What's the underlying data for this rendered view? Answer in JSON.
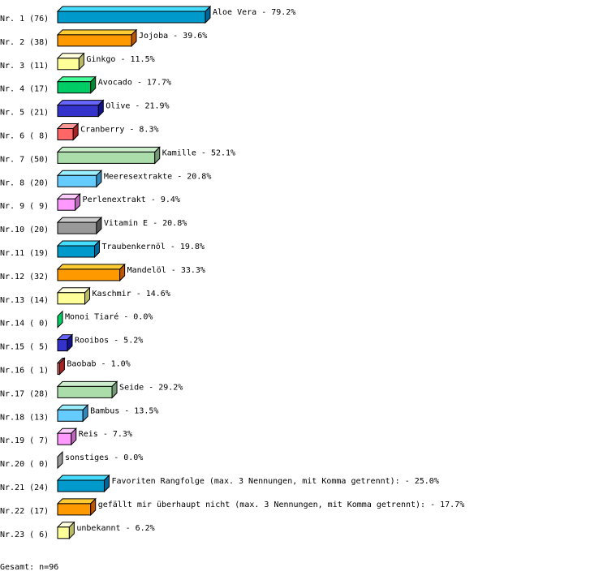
{
  "chart_data": {
    "type": "bar",
    "orientation": "horizontal",
    "style": "3d",
    "items": [
      {
        "rank": "Nr. 1",
        "count": 76,
        "label": "Aloe Vera",
        "percent": "79.2%"
      },
      {
        "rank": "Nr. 2",
        "count": 38,
        "label": "Jojoba",
        "percent": "39.6%"
      },
      {
        "rank": "Nr. 3",
        "count": 11,
        "label": "Ginkgo",
        "percent": "11.5%"
      },
      {
        "rank": "Nr. 4",
        "count": 17,
        "label": "Avocado",
        "percent": "17.7%"
      },
      {
        "rank": "Nr. 5",
        "count": 21,
        "label": "Olive",
        "percent": "21.9%"
      },
      {
        "rank": "Nr. 6",
        "count": 8,
        "label": "Cranberry",
        "percent": "8.3%"
      },
      {
        "rank": "Nr. 7",
        "count": 50,
        "label": "Kamille",
        "percent": "52.1%"
      },
      {
        "rank": "Nr. 8",
        "count": 20,
        "label": "Meeresextrakte",
        "percent": "20.8%"
      },
      {
        "rank": "Nr. 9",
        "count": 9,
        "label": "Perlenextrakt",
        "percent": "9.4%"
      },
      {
        "rank": "Nr.10",
        "count": 20,
        "label": "Vitamin E",
        "percent": "20.8%"
      },
      {
        "rank": "Nr.11",
        "count": 19,
        "label": "Traubenkernöl",
        "percent": "19.8%"
      },
      {
        "rank": "Nr.12",
        "count": 32,
        "label": "Mandelöl",
        "percent": "33.3%"
      },
      {
        "rank": "Nr.13",
        "count": 14,
        "label": "Kaschmir",
        "percent": "14.6%"
      },
      {
        "rank": "Nr.14",
        "count": 0,
        "label": "Monoi Tiaré",
        "percent": "0.0%"
      },
      {
        "rank": "Nr.15",
        "count": 5,
        "label": "Rooibos",
        "percent": "5.2%"
      },
      {
        "rank": "Nr.16",
        "count": 1,
        "label": "Baobab",
        "percent": "1.0%"
      },
      {
        "rank": "Nr.17",
        "count": 28,
        "label": "Seide",
        "percent": "29.2%"
      },
      {
        "rank": "Nr.18",
        "count": 13,
        "label": "Bambus",
        "percent": "13.5%"
      },
      {
        "rank": "Nr.19",
        "count": 7,
        "label": "Reis",
        "percent": "7.3%"
      },
      {
        "rank": "Nr.20",
        "count": 0,
        "label": "sonstiges",
        "percent": "0.0%"
      },
      {
        "rank": "Nr.21",
        "count": 24,
        "label": "Favoriten Rangfolge (max. 3 Nennungen, mit Komma getrennt):",
        "percent": "25.0%"
      },
      {
        "rank": "Nr.22",
        "count": 17,
        "label": "gefällt mir überhaupt nicht (max. 3 Nennungen, mit Komma getrennt):",
        "percent": "17.7%"
      },
      {
        "rank": "Nr.23",
        "count": 6,
        "label": "unbekannt",
        "percent": "6.2%"
      }
    ],
    "palette": [
      {
        "front": "#0099cc",
        "top": "#44ddff",
        "side": "#006699"
      },
      {
        "front": "#ff9900",
        "top": "#ffcc33",
        "side": "#bb5500"
      },
      {
        "front": "#ffff99",
        "top": "#ffffdd",
        "side": "#bbbb66"
      },
      {
        "front": "#00cc66",
        "top": "#44ff99",
        "side": "#008833"
      },
      {
        "front": "#3333cc",
        "top": "#6666ff",
        "side": "#111188"
      },
      {
        "front": "#ff6666",
        "top": "#ff9999",
        "side": "#aa2222"
      },
      {
        "front": "#aaddaa",
        "top": "#cceecc",
        "side": "#779977"
      },
      {
        "front": "#66ccff",
        "top": "#99eeff",
        "side": "#3388bb"
      },
      {
        "front": "#ff99ff",
        "top": "#ffccff",
        "side": "#bb66bb"
      },
      {
        "front": "#999999",
        "top": "#cccccc",
        "side": "#555555"
      }
    ],
    "total": "Gesamt: n=96"
  }
}
